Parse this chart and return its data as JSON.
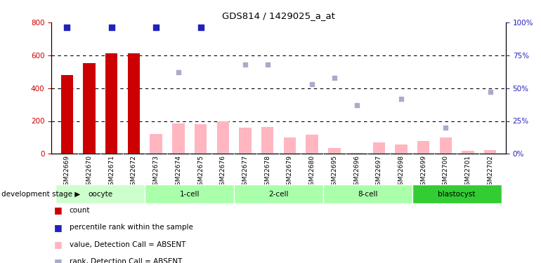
{
  "title": "GDS814 / 1429025_a_at",
  "samples": [
    "GSM22669",
    "GSM22670",
    "GSM22671",
    "GSM22672",
    "GSM22673",
    "GSM22674",
    "GSM22675",
    "GSM22676",
    "GSM22677",
    "GSM22678",
    "GSM22679",
    "GSM22680",
    "GSM22695",
    "GSM22696",
    "GSM22697",
    "GSM22698",
    "GSM22699",
    "GSM22700",
    "GSM22701",
    "GSM22702"
  ],
  "count_values": [
    480,
    550,
    610,
    610,
    null,
    null,
    null,
    null,
    null,
    null,
    null,
    null,
    null,
    null,
    null,
    null,
    null,
    null,
    null,
    null
  ],
  "absent_bar_values": [
    null,
    null,
    null,
    null,
    120,
    185,
    180,
    200,
    160,
    165,
    100,
    115,
    35,
    5,
    70,
    55,
    80,
    100,
    20,
    25
  ],
  "blue_dot_indices": [
    0,
    2,
    4,
    6
  ],
  "blue_dot_pct": [
    96,
    96,
    96,
    96
  ],
  "light_blue_indices": [
    5,
    8,
    9,
    11,
    12,
    13,
    15,
    17,
    19
  ],
  "light_blue_pct": [
    62,
    68,
    68,
    53,
    58,
    37,
    42,
    20,
    47
  ],
  "groups": [
    {
      "label": "oocyte",
      "start": 0,
      "end": 3,
      "color": "#CCFFCC"
    },
    {
      "label": "1-cell",
      "start": 4,
      "end": 7,
      "color": "#AAFFAA"
    },
    {
      "label": "2-cell",
      "start": 8,
      "end": 11,
      "color": "#AAFFAA"
    },
    {
      "label": "8-cell",
      "start": 12,
      "end": 15,
      "color": "#AAFFAA"
    },
    {
      "label": "blastocyst",
      "start": 16,
      "end": 19,
      "color": "#33CC33"
    }
  ],
  "ylim_left": [
    0,
    800
  ],
  "ylim_right": [
    0,
    100
  ],
  "yticks_left": [
    0,
    200,
    400,
    600,
    800
  ],
  "yticks_right": [
    0,
    25,
    50,
    75,
    100
  ],
  "hgrid_lines": [
    200,
    400,
    600
  ],
  "count_color": "#CC0000",
  "absent_bar_color": "#FFB6C1",
  "blue_dot_color": "#2222BB",
  "light_blue_color": "#AAAACC",
  "xtick_bg": "#D0D0D0"
}
